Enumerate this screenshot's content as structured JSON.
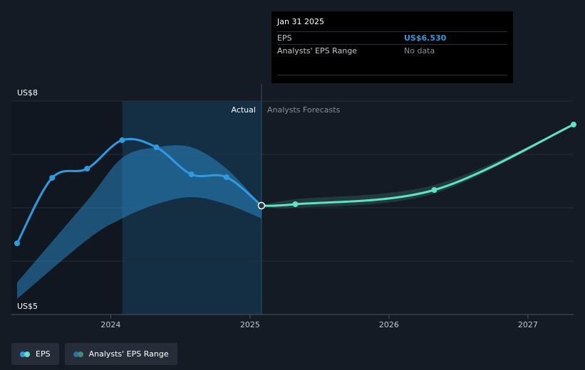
{
  "chart_data": {
    "type": "line",
    "y_top_label": "US$8",
    "y_bottom_label": "US$5",
    "ylim": [
      5,
      8
    ],
    "xlim": [
      "2023-04-15",
      "2027-05-01"
    ],
    "x_ticks": [
      {
        "date": "2024-01-01",
        "label": "2024"
      },
      {
        "date": "2025-01-01",
        "label": "2025"
      },
      {
        "date": "2026-01-01",
        "label": "2026"
      },
      {
        "date": "2027-01-01",
        "label": "2027"
      }
    ],
    "divider_date": "2025-01-31",
    "highlight_start": "2024-01-31",
    "section_labels": {
      "actual": "Actual",
      "forecast": "Analysts Forecasts"
    },
    "series": [
      {
        "name": "EPS",
        "color": "#2f9ae0",
        "points": [
          {
            "x": "2023-04-30",
            "y": 6.0
          },
          {
            "x": "2023-07-31",
            "y": 6.92
          },
          {
            "x": "2023-10-31",
            "y": 7.05
          },
          {
            "x": "2024-01-31",
            "y": 7.45
          },
          {
            "x": "2024-04-30",
            "y": 7.35
          },
          {
            "x": "2024-07-31",
            "y": 6.97
          },
          {
            "x": "2024-10-31",
            "y": 6.93
          },
          {
            "x": "2025-01-31",
            "y": 6.53
          }
        ]
      },
      {
        "name": "EPS Forecast",
        "color": "#5fe3c0",
        "points": [
          {
            "x": "2025-01-31",
            "y": 6.53
          },
          {
            "x": "2025-04-30",
            "y": 6.55
          },
          {
            "x": "2026-04-30",
            "y": 6.75
          },
          {
            "x": "2027-05-01",
            "y": 7.67
          }
        ]
      }
    ],
    "range_actual": {
      "color": "#2f9ae0",
      "x": [
        "2023-04-30",
        "2023-10-31",
        "2024-01-31",
        "2024-04-30",
        "2024-07-31",
        "2024-10-31",
        "2025-01-31"
      ],
      "low": [
        5.22,
        6.05,
        6.35,
        6.55,
        6.65,
        6.55,
        6.35
      ],
      "high": [
        5.45,
        6.6,
        7.2,
        7.35,
        7.35,
        7.05,
        6.53
      ]
    },
    "range_forecast": {
      "color": "#5fe3c0",
      "x": [
        "2025-01-31",
        "2025-04-30",
        "2026-04-30",
        "2027-05-01"
      ],
      "low": [
        6.53,
        6.5,
        6.7,
        7.67
      ],
      "high": [
        6.53,
        6.62,
        6.82,
        7.67
      ]
    }
  },
  "tooltip": {
    "date": "Jan 31 2025",
    "rows": [
      {
        "label": "EPS",
        "value": "US$6.530"
      },
      {
        "label": "Analysts' EPS Range",
        "value": "No data"
      }
    ]
  },
  "legend": [
    {
      "label": "EPS",
      "colors": [
        "#2f9ae0",
        "#5fe3c0"
      ]
    },
    {
      "label": "Analysts' EPS Range",
      "colors": [
        "#2f6fa0",
        "#3f8a7e"
      ]
    }
  ]
}
